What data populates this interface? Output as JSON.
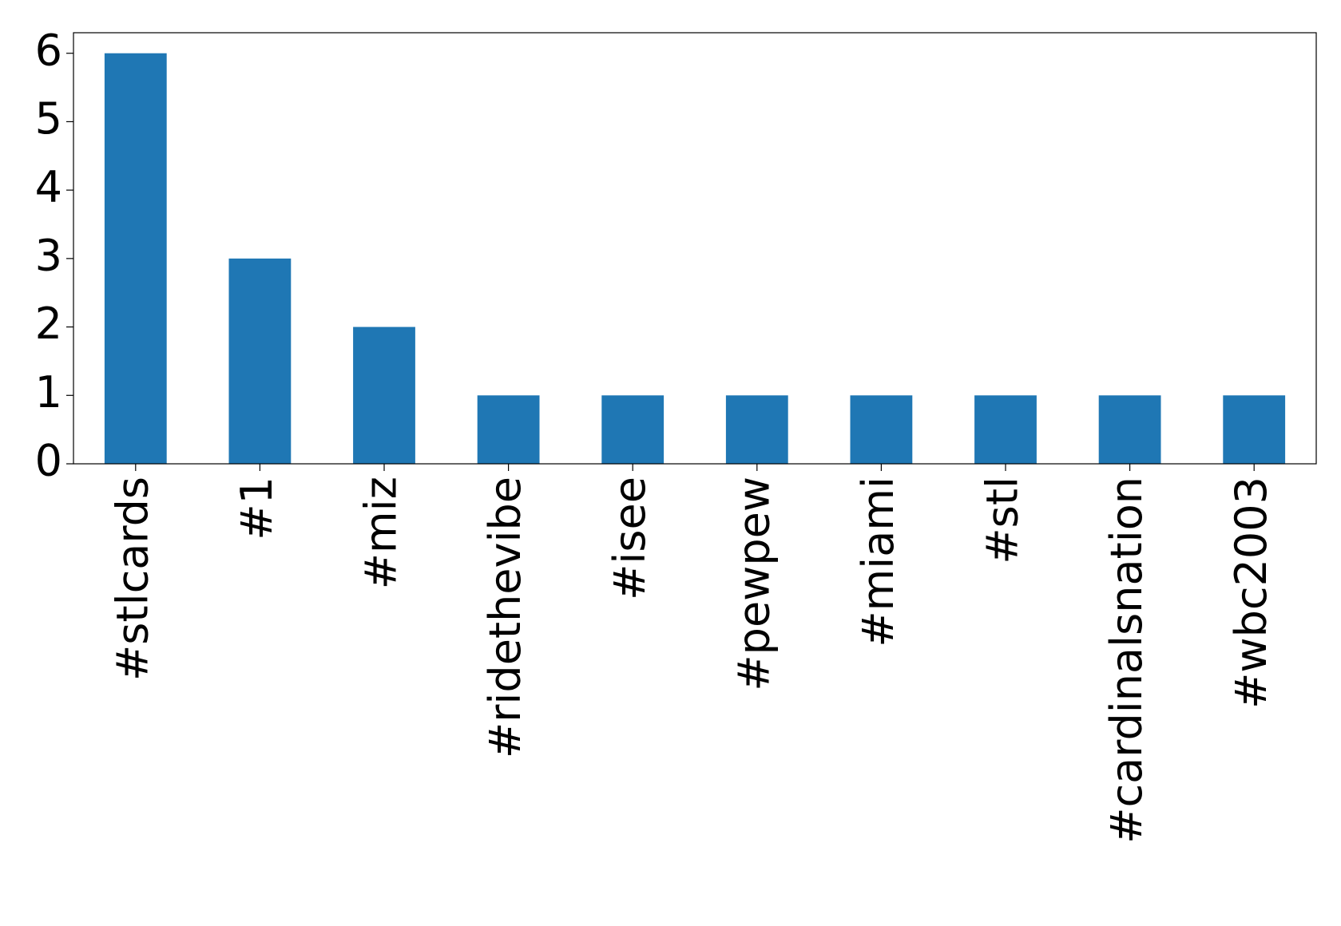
{
  "chart_data": {
    "type": "bar",
    "categories": [
      "#stlcards",
      "#1",
      "#miz",
      "#ridethevibe",
      "#isee",
      "#pewpew",
      "#miami",
      "#stl",
      "#cardinalsnation",
      "#wbc2003"
    ],
    "values": [
      6,
      3,
      2,
      1,
      1,
      1,
      1,
      1,
      1,
      1
    ],
    "color": "#1f77b4",
    "ylim": [
      0,
      6.3
    ],
    "yticks": [
      0,
      1,
      2,
      3,
      4,
      5,
      6
    ],
    "grid": false
  }
}
